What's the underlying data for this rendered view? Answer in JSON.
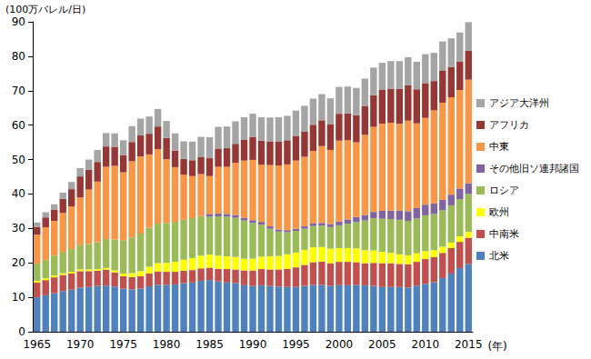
{
  "chart_data": {
    "type": "bar",
    "stacked": true,
    "grid": false,
    "legend": "right",
    "y_label": "(100万バレル/日)",
    "x_label": "(年)",
    "ylim": [
      0,
      90
    ],
    "yticks": [
      0,
      10,
      20,
      30,
      40,
      50,
      60,
      70,
      80,
      90
    ],
    "categories": [
      "1965",
      null,
      null,
      null,
      null,
      "1970",
      null,
      null,
      null,
      null,
      "1975",
      null,
      null,
      null,
      null,
      "1980",
      null,
      null,
      null,
      null,
      "1985",
      null,
      null,
      null,
      null,
      "1990",
      null,
      null,
      null,
      null,
      "1995",
      null,
      null,
      null,
      null,
      "2000",
      null,
      null,
      null,
      null,
      "2005",
      null,
      null,
      null,
      null,
      "2010",
      null,
      null,
      null,
      null,
      "2015"
    ],
    "series": [
      {
        "name": "北米",
        "color": "#4F81BD",
        "values": [
          10.0,
          10.6,
          11.2,
          11.8,
          12.2,
          12.8,
          13.0,
          13.3,
          13.4,
          13.1,
          12.5,
          12.3,
          12.5,
          13.2,
          13.6,
          13.6,
          13.7,
          14.1,
          14.3,
          14.8,
          15.0,
          14.6,
          14.3,
          14.1,
          13.5,
          13.3,
          13.5,
          13.3,
          13.1,
          13.0,
          13.0,
          13.3,
          13.6,
          13.6,
          13.3,
          13.5,
          13.5,
          13.6,
          13.5,
          13.3,
          13.0,
          13.0,
          13.0,
          12.8,
          13.4,
          13.9,
          14.4,
          15.6,
          16.9,
          18.5,
          19.7
        ]
      },
      {
        "name": "中南米",
        "color": "#C0504D",
        "values": [
          4.3,
          4.4,
          4.6,
          4.7,
          4.7,
          4.8,
          4.6,
          4.4,
          4.6,
          4.1,
          3.6,
          3.6,
          3.6,
          3.7,
          3.9,
          3.8,
          3.7,
          3.6,
          3.6,
          3.6,
          3.6,
          3.7,
          3.9,
          4.0,
          4.3,
          4.5,
          4.7,
          4.8,
          5.0,
          5.3,
          5.7,
          6.1,
          6.6,
          6.8,
          6.6,
          6.8,
          6.8,
          6.6,
          6.4,
          6.7,
          6.9,
          6.9,
          6.7,
          6.8,
          6.9,
          7.2,
          7.3,
          7.3,
          7.4,
          7.6,
          7.6
        ]
      },
      {
        "name": "欧州",
        "color": "#FFFF00",
        "values": [
          0.5,
          0.5,
          0.5,
          0.5,
          0.5,
          0.5,
          0.5,
          0.5,
          0.5,
          0.6,
          0.8,
          1.1,
          1.5,
          2.0,
          2.4,
          2.6,
          2.9,
          3.2,
          3.5,
          3.7,
          3.8,
          3.8,
          3.7,
          3.6,
          3.4,
          3.4,
          3.6,
          3.8,
          3.9,
          4.2,
          4.3,
          4.4,
          4.3,
          4.2,
          4.2,
          4.0,
          4.0,
          4.0,
          3.8,
          3.6,
          3.3,
          3.0,
          2.8,
          2.6,
          2.5,
          2.3,
          2.0,
          1.8,
          1.6,
          1.6,
          1.7
        ]
      },
      {
        "name": "ロシア",
        "color": "#9BBB59",
        "values": [
          5.0,
          5.4,
          5.8,
          6.2,
          6.6,
          7.0,
          7.4,
          7.8,
          8.4,
          9.0,
          9.7,
          10.4,
          10.9,
          11.3,
          11.5,
          11.6,
          11.6,
          11.6,
          11.6,
          11.5,
          11.0,
          11.4,
          11.5,
          11.4,
          11.1,
          10.4,
          9.3,
          8.0,
          7.1,
          6.4,
          6.3,
          6.1,
          6.2,
          6.2,
          6.3,
          6.6,
          7.1,
          7.7,
          8.6,
          9.4,
          9.6,
          9.8,
          10.0,
          10.0,
          10.1,
          10.4,
          10.5,
          10.6,
          10.8,
          10.8,
          11.0
        ]
      },
      {
        "name": "その他旧ソ連邦諸国",
        "color": "#8064A2",
        "values": [
          0,
          0,
          0,
          0,
          0,
          0,
          0,
          0,
          0,
          0,
          0,
          0,
          0,
          0,
          0,
          0,
          0,
          0,
          0,
          0,
          0.8,
          0.8,
          0.8,
          0.8,
          0.8,
          0.8,
          0.8,
          0.7,
          0.6,
          0.6,
          0.6,
          0.7,
          0.7,
          0.8,
          0.9,
          1.1,
          1.2,
          1.4,
          1.6,
          1.8,
          2.3,
          2.5,
          2.7,
          2.8,
          3.0,
          3.1,
          3.1,
          3.0,
          3.1,
          3.1,
          3.1
        ]
      },
      {
        "name": "中東",
        "color": "#F79646",
        "values": [
          8.4,
          9.4,
          10.1,
          11.3,
          12.4,
          13.9,
          15.8,
          17.6,
          21.0,
          21.4,
          19.7,
          22.1,
          22.4,
          21.3,
          21.6,
          18.5,
          15.9,
          13.1,
          12.2,
          12.2,
          11.0,
          13.6,
          13.7,
          15.2,
          16.6,
          17.5,
          16.6,
          17.8,
          18.6,
          19.1,
          19.8,
          20.2,
          21.1,
          22.3,
          21.5,
          23.5,
          23.0,
          21.7,
          23.3,
          24.7,
          25.3,
          25.5,
          25.2,
          26.3,
          24.6,
          25.2,
          27.0,
          28.2,
          28.3,
          28.6,
          30.1
        ]
      },
      {
        "name": "アフリカ",
        "color": "#953735",
        "values": [
          2.2,
          2.9,
          3.2,
          4.1,
          5.0,
          6.1,
          5.8,
          5.7,
          5.9,
          5.4,
          5.0,
          5.6,
          6.1,
          6.0,
          6.6,
          6.2,
          4.8,
          4.6,
          4.6,
          5.0,
          5.2,
          5.3,
          5.4,
          5.5,
          6.0,
          6.7,
          7.0,
          6.9,
          7.0,
          7.0,
          7.2,
          7.4,
          7.6,
          7.5,
          7.4,
          7.8,
          7.8,
          7.9,
          8.4,
          9.2,
          9.8,
          9.9,
          10.2,
          10.3,
          9.9,
          10.1,
          8.5,
          9.4,
          8.8,
          8.3,
          8.4
        ]
      },
      {
        "name": "アジア大洋州",
        "color": "#A5A5A5",
        "values": [
          1.3,
          1.5,
          1.6,
          1.8,
          2.1,
          2.4,
          2.9,
          3.5,
          3.9,
          4.0,
          4.3,
          4.6,
          4.9,
          5.0,
          5.1,
          4.9,
          5.0,
          5.1,
          5.4,
          5.8,
          6.1,
          6.3,
          6.3,
          6.5,
          6.6,
          6.7,
          6.8,
          6.9,
          7.0,
          7.1,
          7.3,
          7.4,
          7.6,
          7.6,
          7.6,
          7.8,
          7.8,
          7.9,
          7.9,
          8.0,
          7.9,
          8.0,
          8.0,
          8.1,
          8.0,
          8.4,
          8.2,
          8.4,
          8.3,
          8.4,
          8.3
        ]
      }
    ]
  }
}
